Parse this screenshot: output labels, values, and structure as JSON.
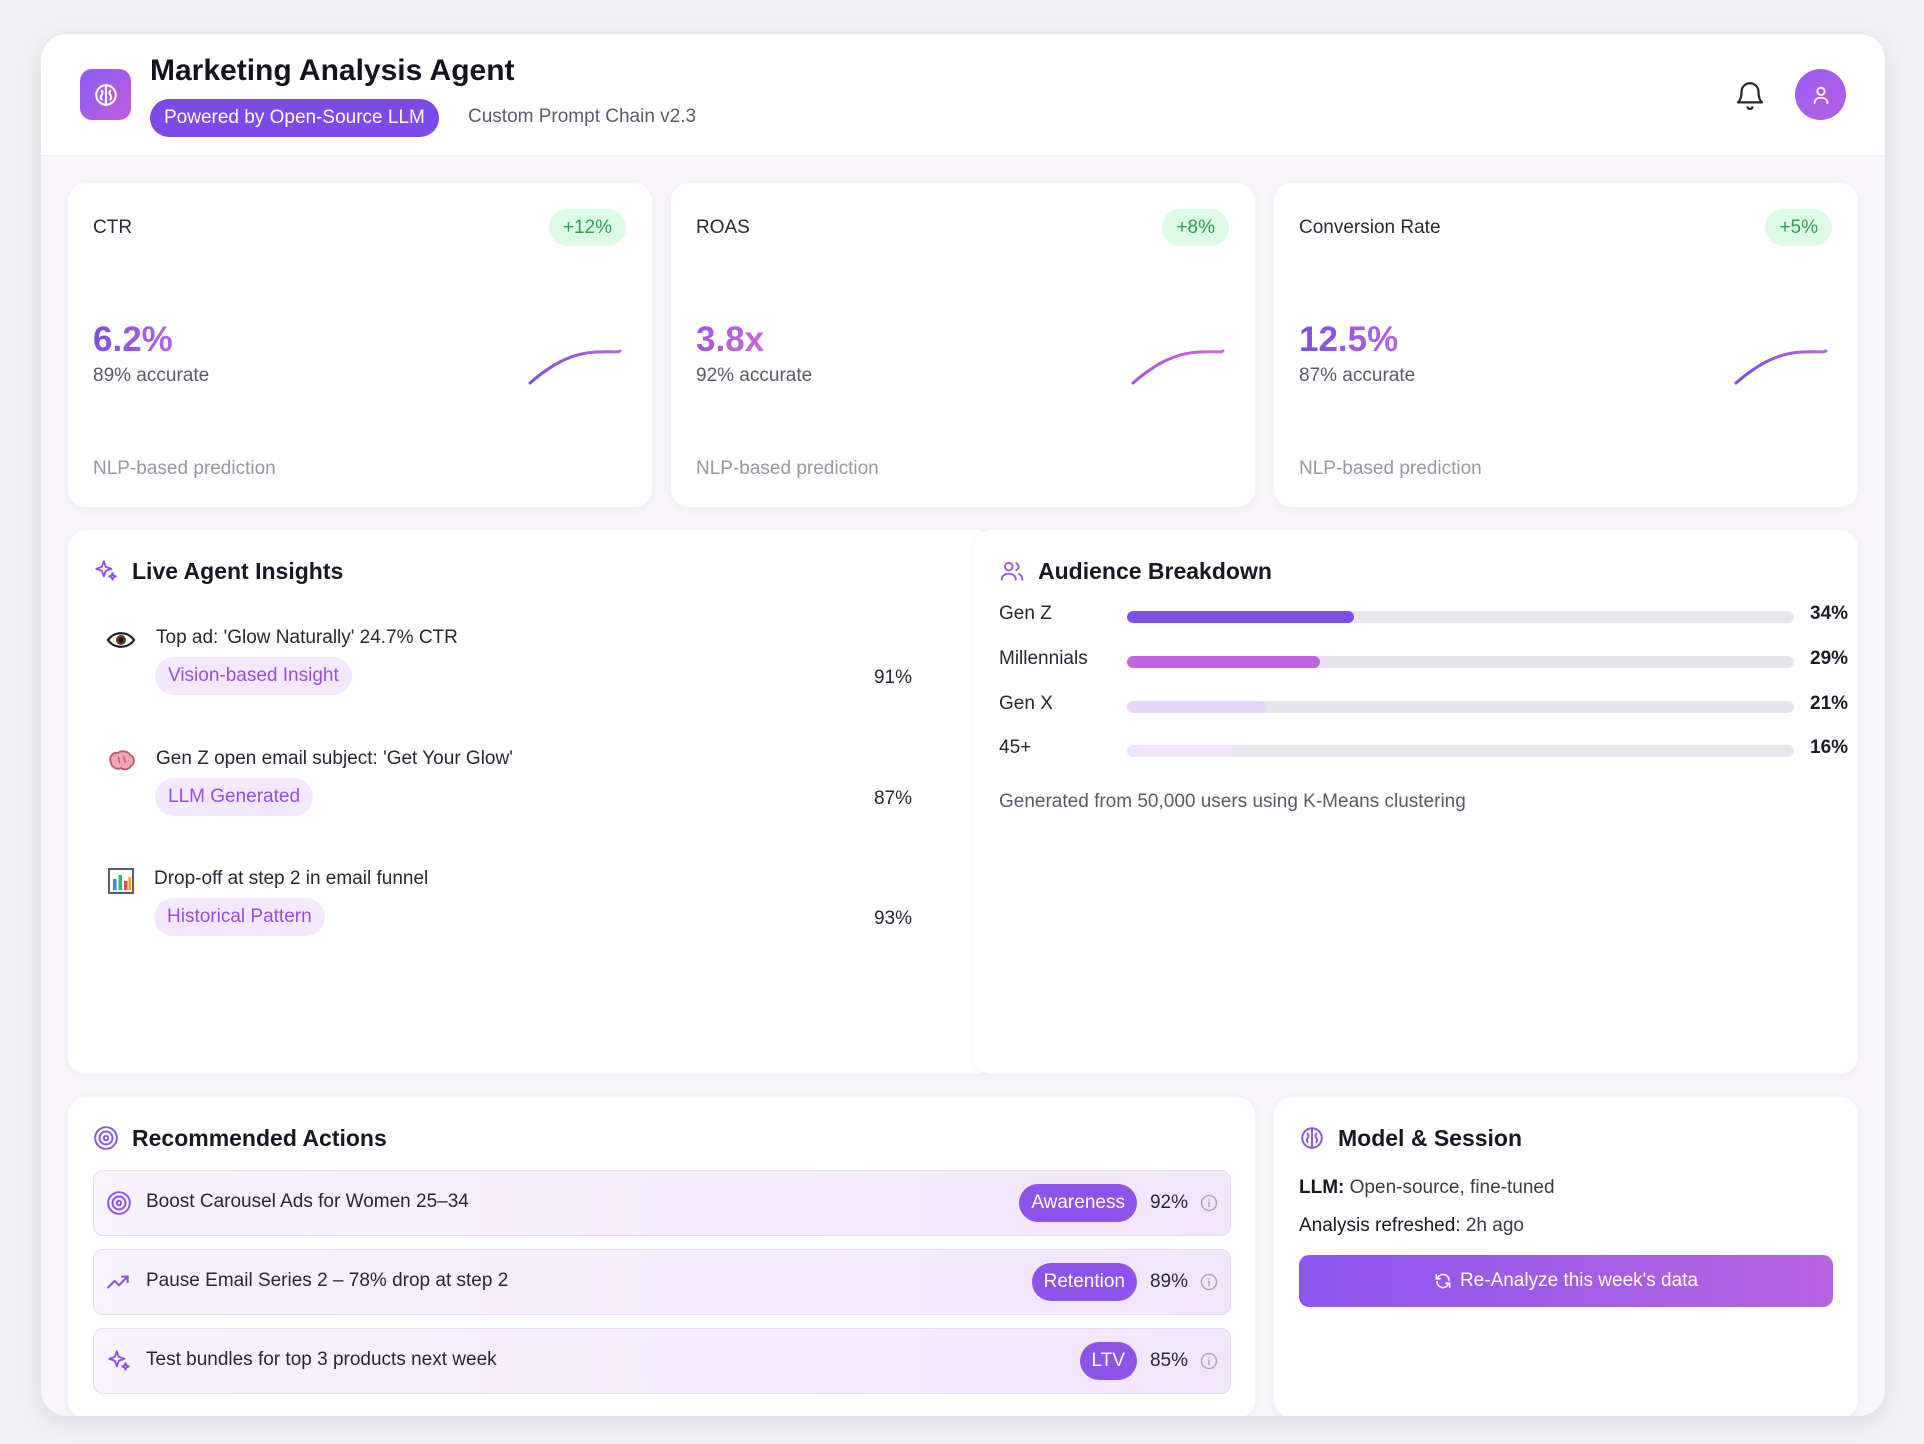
{
  "header": {
    "title": "Marketing Analysis Agent",
    "llm_badge": "Powered by Open-Source LLM",
    "chain_version": "Custom Prompt Chain v2.3"
  },
  "metrics": [
    {
      "label": "CTR",
      "delta": "+12%",
      "value": "6.2%",
      "accuracy": "89% accurate",
      "footnote": "NLP-based prediction"
    },
    {
      "label": "ROAS",
      "delta": "+8%",
      "value": "3.8x",
      "accuracy": "92% accurate",
      "footnote": "NLP-based prediction"
    },
    {
      "label": "Conversion Rate",
      "delta": "+5%",
      "value": "12.5%",
      "accuracy": "87% accurate",
      "footnote": "NLP-based prediction"
    }
  ],
  "insights": {
    "title": "Live Agent Insights",
    "items": [
      {
        "icon": "eye-icon",
        "text": "Top ad: 'Glow Naturally' 24.7% CTR",
        "tag": "Vision-based Insight",
        "confidence": "91%"
      },
      {
        "icon": "brain-icon",
        "text": "Gen Z open email subject: 'Get Your Glow'",
        "tag": "LLM Generated",
        "confidence": "87%"
      },
      {
        "icon": "bar-chart-icon",
        "text": "Drop-off at step 2 in email funnel",
        "tag": "Historical Pattern",
        "confidence": "93%"
      }
    ]
  },
  "audience": {
    "title": "Audience Breakdown",
    "segments": [
      {
        "label": "Gen Z",
        "pct": "34%",
        "value": 34,
        "color": "#7d4ee8"
      },
      {
        "label": "Millennials",
        "pct": "29%",
        "value": 29,
        "color": "#c264df"
      },
      {
        "label": "Gen X",
        "pct": "21%",
        "value": 21,
        "color": "#e6d6fb"
      },
      {
        "label": "45+",
        "pct": "16%",
        "value": 16,
        "color": "#efe4fc"
      }
    ],
    "note": "Generated from 50,000 users using K-Means clustering"
  },
  "actions": {
    "title": "Recommended Actions",
    "items": [
      {
        "icon": "target-icon",
        "text": "Boost Carousel Ads for Women 25–34",
        "tag": "Awareness",
        "pct": "92%"
      },
      {
        "icon": "trending-up-icon",
        "text": "Pause Email Series 2 – 78% drop at step 2",
        "tag": "Retention",
        "pct": "89%"
      },
      {
        "icon": "sparkles-icon",
        "text": "Test bundles for top 3 products next week",
        "tag": "LTV",
        "pct": "85%"
      }
    ]
  },
  "model_session": {
    "title": "Model & Session",
    "llm_label": "LLM:",
    "llm_value": "Open-source, fine-tuned",
    "refreshed_label": "Analysis refreshed:",
    "refreshed_value": "2h ago",
    "button_label": "Re-Analyze this week's data"
  },
  "colors": {
    "accent": "#7c4ae8",
    "accent_pink": "#c15ddd",
    "positive": "#2f9d57"
  }
}
